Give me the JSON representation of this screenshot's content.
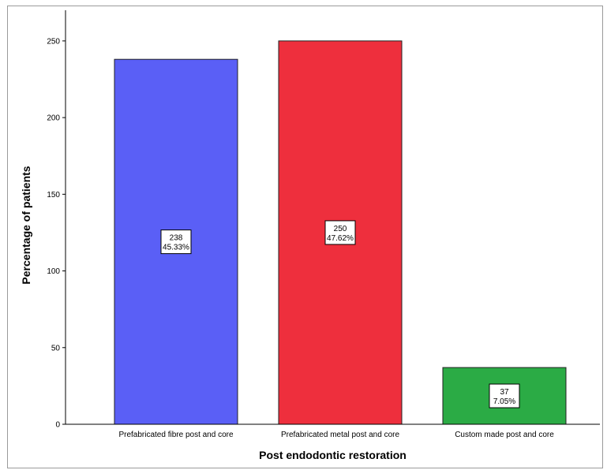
{
  "chart_data": {
    "type": "bar",
    "categories": [
      "Prefabricated fibre post and core",
      "Prefabricated metal post and core",
      "Custom made post and core"
    ],
    "values": [
      238,
      250,
      37
    ],
    "percent_labels": [
      "45.33%",
      "47.62%",
      "7.05%"
    ],
    "colors": [
      "#5a5ff6",
      "#ee2f3d",
      "#2bab45"
    ],
    "xlabel": "Post endodontic restoration",
    "ylabel": "Percentage of patients",
    "ylim": [
      0,
      270
    ],
    "yticks": [
      0,
      50,
      100,
      150,
      200,
      250
    ],
    "grid": false,
    "legend": "none"
  }
}
